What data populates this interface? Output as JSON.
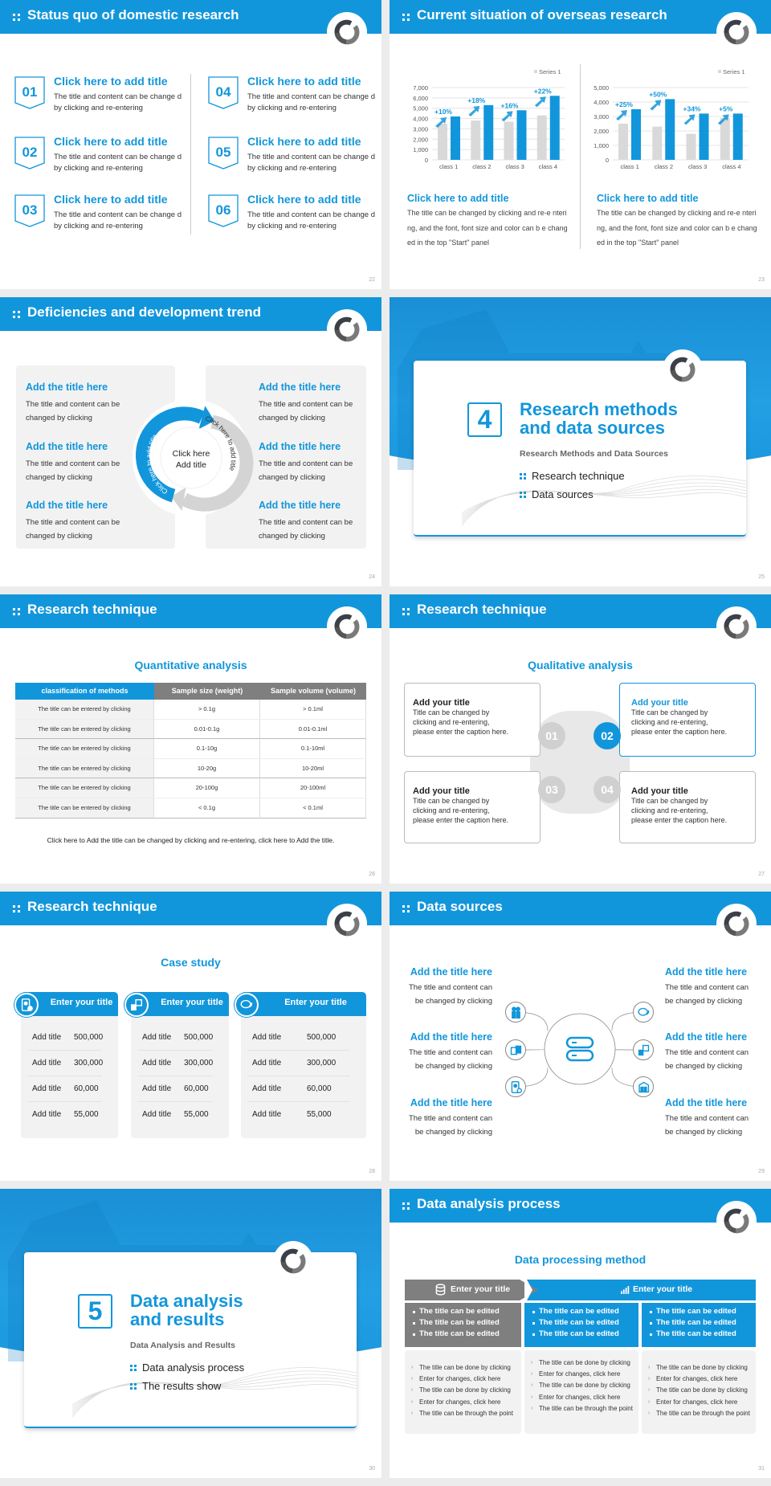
{
  "colors": {
    "accent": "#1296db",
    "gray": "#7f7f7f",
    "panel": "#f2f2f2",
    "bar_gray": "#d9d9d9"
  },
  "slides": [
    {
      "page": "22",
      "title": "Status quo of domestic research",
      "items": [
        {
          "num": "01",
          "title": "Click here to add title",
          "desc": "The title and content can be change d by clicking and re-entering"
        },
        {
          "num": "02",
          "title": "Click here to add title",
          "desc": "The title and content can be change d by clicking and re-entering"
        },
        {
          "num": "03",
          "title": "Click here to add title",
          "desc": "The title and content can be change d by clicking and re-entering"
        },
        {
          "num": "04",
          "title": "Click here to add title",
          "desc": "The title and content can be change d by clicking and re-entering"
        },
        {
          "num": "05",
          "title": "Click here to add title",
          "desc": "The title and content can be change d by clicking and re-entering"
        },
        {
          "num": "06",
          "title": "Click here to add title",
          "desc": "The title and content can be change d by clicking and re-entering"
        }
      ]
    },
    {
      "page": "23",
      "title": "Current situation of overseas research",
      "blocks": [
        {
          "title": "Click here to add title",
          "desc": "The title can be changed by clicking and re-e ntering, and the font, font size and color can b e changed in the top \"Start\" panel"
        },
        {
          "title": "Click here to add title",
          "desc": "The title can be changed by clicking and re-e ntering, and the font, font size and color can b e changed in the top \"Start\" panel"
        }
      ]
    },
    {
      "page": "24",
      "title": "Deficiencies and development trend",
      "left": [
        {
          "title": "Add the title here",
          "desc": "The title and content can be changed by clicking"
        },
        {
          "title": "Add the title here",
          "desc": "The title and content can be changed by clicking"
        },
        {
          "title": "Add the title here",
          "desc": "The title and content can be changed by clicking"
        }
      ],
      "right": [
        {
          "title": "Add the title here",
          "desc": "The title and content can be changed by clicking"
        },
        {
          "title": "Add the title here",
          "desc": "The title and content can be changed by clicking"
        },
        {
          "title": "Add the title here",
          "desc": "The title and content can be changed by clicking"
        }
      ],
      "ring": {
        "blue_label": "Click here to add title",
        "gray_label": "Click here to add title",
        "center": [
          "Click here",
          "Add title"
        ]
      }
    },
    {
      "page": "25",
      "number": "4",
      "title_lines": [
        "Research methods",
        "and data sources"
      ],
      "subtitle": "Research Methods and Data Sources",
      "bullets": [
        "Research technique",
        "Data sources"
      ]
    },
    {
      "page": "26",
      "title": "Research technique",
      "subtitle": "Quantitative analysis",
      "table": {
        "headers": [
          "classification of methods",
          "Sample size (weight)",
          "Sample volume (volume)"
        ],
        "rows": [
          [
            "The title can be entered by clicking",
            "> 0.1g",
            "> 0.1ml"
          ],
          [
            "The title can be entered by clicking",
            "0.01-0.1g",
            "0.01-0.1ml"
          ],
          [
            "The title can be entered by clicking",
            "0.1-10g",
            "0.1-10ml"
          ],
          [
            "The title can be entered by clicking",
            "10-20g",
            "10-20ml"
          ],
          [
            "The title can be entered by clicking",
            "20-100g",
            "20-100ml"
          ],
          [
            "The title can be entered by clicking",
            "< 0.1g",
            "< 0.1ml"
          ]
        ]
      },
      "footer": "Click here to Add the title can be changed by clicking and re-entering, click here to Add the title."
    },
    {
      "page": "27",
      "title": "Research technique",
      "subtitle": "Qualitative analysis",
      "numbers": [
        "01",
        "02",
        "03",
        "04"
      ],
      "boxes": [
        {
          "title": "Add your title",
          "desc": "Title can be changed by clicking and re-entering, please enter the caption here."
        },
        {
          "title": "Add your title",
          "desc": "Title can be changed by clicking and re-entering, please enter the caption here."
        },
        {
          "title": "Add your title",
          "desc": "Title can be changed by clicking and re-entering, please enter the caption here."
        },
        {
          "title": "Add your title",
          "desc": "Title can be changed by clicking and re-entering, please enter the caption here."
        }
      ]
    },
    {
      "page": "28",
      "title": "Research technique",
      "subtitle": "Case study",
      "cards": [
        {
          "title": "Enter your title",
          "icon": "phone-user-icon",
          "rows": [
            {
              "label": "Add title",
              "value": "500,000"
            },
            {
              "label": "Add title",
              "value": "300,000"
            },
            {
              "label": "Add title",
              "value": "60,000"
            },
            {
              "label": "Add title",
              "value": "55,000"
            }
          ]
        },
        {
          "title": "Enter your title",
          "icon": "qr-scan-icon",
          "rows": [
            {
              "label": "Add title",
              "value": "500,000"
            },
            {
              "label": "Add title",
              "value": "300,000"
            },
            {
              "label": "Add title",
              "value": "60,000"
            },
            {
              "label": "Add title",
              "value": "55,000"
            }
          ]
        },
        {
          "title": "Enter your title",
          "icon": "chat-icon",
          "rows": [
            {
              "label": "Add title",
              "value": "500,000"
            },
            {
              "label": "Add title",
              "value": "300,000"
            },
            {
              "label": "Add title",
              "value": "60,000"
            },
            {
              "label": "Add title",
              "value": "55,000"
            }
          ]
        }
      ]
    },
    {
      "page": "29",
      "title": "Data sources",
      "center_icon": "server-icon",
      "left": [
        {
          "title": "Add the title here",
          "desc": [
            "The title and content can",
            "be changed by clicking"
          ],
          "icon": "people-icon"
        },
        {
          "title": "Add the title here",
          "desc": [
            "The title and content can",
            "be changed by clicking"
          ],
          "icon": "cube-icon"
        },
        {
          "title": "Add the title here",
          "desc": [
            "The title and content can",
            "be changed by clicking"
          ],
          "icon": "phone-user-icon"
        }
      ],
      "right": [
        {
          "title": "Add the title here",
          "desc": [
            "The title and content can",
            "be changed by clicking"
          ],
          "icon": "chat-icon"
        },
        {
          "title": "Add the title here",
          "desc": [
            "The title and content can",
            "be changed by clicking"
          ],
          "icon": "qr-scan-icon"
        },
        {
          "title": "Add the title here",
          "desc": [
            "The title and content can",
            "be changed by clicking"
          ],
          "icon": "building-icon"
        }
      ]
    },
    {
      "page": "30",
      "number": "5",
      "title_lines": [
        "Data analysis",
        "and results"
      ],
      "subtitle": "Data Analysis and Results",
      "bullets": [
        "Data analysis process",
        "The results show"
      ]
    },
    {
      "page": "31",
      "title": "Data analysis process",
      "subtitle": "Data processing method",
      "headers": [
        {
          "title": "Enter your title",
          "icon": "database-icon"
        },
        {
          "title": "Enter your title",
          "icon": "bar-chart-icon"
        }
      ],
      "columns": [
        {
          "bullets": [
            "The title can be edited",
            "The title can be edited",
            "The title can be edited"
          ],
          "notes": [
            "The title can be done by clicking",
            "Enter for changes, click here",
            "The title can be done by clicking",
            "Enter for changes, click here",
            "The title can be through the point"
          ]
        },
        {
          "bullets": [
            "The title can be edited",
            "The title can be edited",
            "The title can be edited"
          ],
          "notes": [
            "The title can be done by clicking",
            "Enter for changes, click here",
            "The title can be done by clicking",
            "Enter for changes, click here",
            "The title can be through the point"
          ]
        },
        {
          "bullets": [
            "The title can be edited",
            "The title can be edited",
            "The title can be edited"
          ],
          "notes": [
            "The title can be done by clicking",
            "Enter for changes, click here",
            "The title can be done by clicking",
            "Enter for changes, click here",
            "The title can be through the point"
          ]
        }
      ]
    }
  ],
  "chart_data": [
    {
      "type": "bar",
      "categories": [
        "class 1",
        "class 2",
        "class 3",
        "class 4"
      ],
      "ylim": [
        0,
        7000
      ],
      "yticks": [
        "0",
        "1,000",
        "2,000",
        "3,000",
        "4,000",
        "5,000",
        "6,000",
        "7,000"
      ],
      "legend": "top-right",
      "grid": true,
      "series": [
        {
          "name": "Series 1",
          "values": [
            3500,
            3800,
            3700,
            4300
          ]
        },
        {
          "values": [
            4200,
            5300,
            4800,
            6200
          ]
        }
      ],
      "annotations": [
        "+10%",
        "+18%",
        "+16%",
        "+22%"
      ]
    },
    {
      "type": "bar",
      "categories": [
        "class 1",
        "class 2",
        "class 3",
        "class 4"
      ],
      "ylim": [
        0,
        5000
      ],
      "yticks": [
        "0",
        "1,000",
        "2,000",
        "3,000",
        "4,000",
        "5,000"
      ],
      "legend": "top-right",
      "grid": true,
      "series": [
        {
          "name": "Series 1",
          "values": [
            2500,
            2300,
            1800,
            2900
          ]
        },
        {
          "values": [
            3500,
            4200,
            3200,
            3200
          ]
        }
      ],
      "annotations": [
        "+25%",
        "+50%",
        "+34%",
        "+5%"
      ]
    }
  ]
}
